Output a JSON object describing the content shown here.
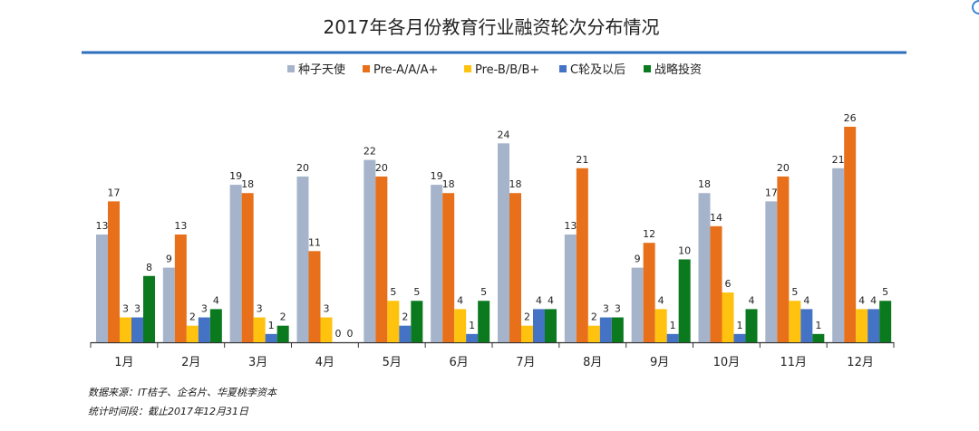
{
  "chart_data": {
    "type": "bar",
    "title": "2017年各月份教育行业融资轮次分布情况",
    "xlabel": "",
    "ylabel": "",
    "ylim": [
      0,
      26
    ],
    "legend_position": "top",
    "grid": false,
    "categories": [
      "1月",
      "2月",
      "3月",
      "4月",
      "5月",
      "6月",
      "7月",
      "8月",
      "9月",
      "10月",
      "11月",
      "12月"
    ],
    "series": [
      {
        "name": "种子天使",
        "color": "#a5b4cb",
        "values": [
          13,
          9,
          19,
          20,
          22,
          19,
          24,
          13,
          9,
          18,
          17,
          21
        ]
      },
      {
        "name": "Pre-A/A/A+",
        "color": "#e8701a",
        "values": [
          17,
          13,
          18,
          11,
          20,
          18,
          18,
          21,
          12,
          14,
          20,
          26
        ]
      },
      {
        "name": "Pre-B/B/B+",
        "color": "#ffc20e",
        "values": [
          3,
          2,
          3,
          3,
          5,
          4,
          2,
          2,
          4,
          6,
          5,
          4
        ]
      },
      {
        "name": "C轮及以后",
        "color": "#4472c4",
        "values": [
          3,
          3,
          1,
          0,
          2,
          1,
          4,
          3,
          1,
          1,
          4,
          4
        ]
      },
      {
        "name": "战略投资",
        "color": "#0b7a1f",
        "values": [
          8,
          4,
          2,
          0,
          5,
          5,
          4,
          3,
          10,
          4,
          1,
          5
        ]
      }
    ]
  },
  "header_rule_color": "#2e6fbd",
  "footnotes": {
    "source": "数据来源：IT桔子、企名片、华夏桃李资本",
    "period": "统计时间段：截止2017年12月31日"
  }
}
